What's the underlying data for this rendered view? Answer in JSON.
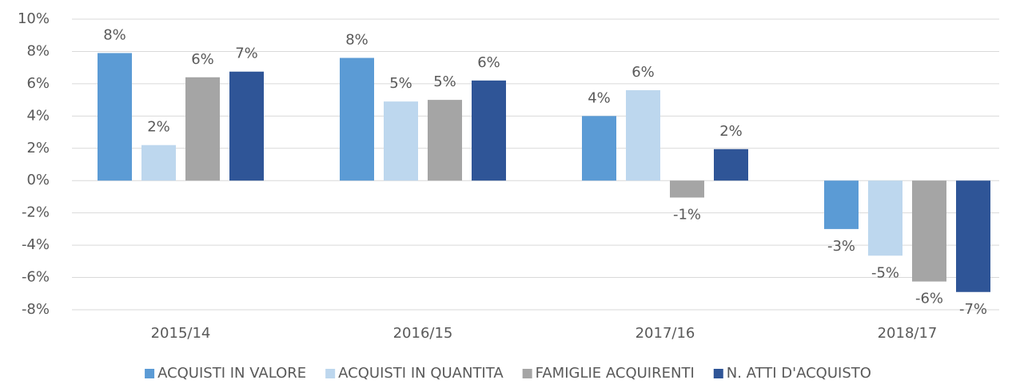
{
  "chart_data": {
    "type": "bar",
    "categories": [
      "2015/14",
      "2016/15",
      "2017/16",
      "2018/17"
    ],
    "series": [
      {
        "name": "ACQUISTI IN VALORE",
        "color": "#5b9bd5",
        "values": [
          7.9,
          7.6,
          4.0,
          -3.0
        ],
        "value_labels": [
          "8%",
          "8%",
          "4%",
          "-3%"
        ]
      },
      {
        "name": "ACQUISTI IN QUANTITA",
        "color": "#bdd7ee",
        "values": [
          2.2,
          4.9,
          5.6,
          -4.65
        ],
        "value_labels": [
          "2%",
          "5%",
          "6%",
          "-5%"
        ]
      },
      {
        "name": "FAMIGLIE ACQUIRENTI",
        "color": "#a5a5a5",
        "values": [
          6.4,
          5.0,
          -1.05,
          -6.25
        ],
        "value_labels": [
          "6%",
          "5%",
          "-1%",
          "-6%"
        ]
      },
      {
        "name": "N. ATTI D'ACQUISTO",
        "color": "#2f5597",
        "values": [
          6.75,
          6.2,
          1.95,
          -6.9
        ],
        "value_labels": [
          "7%",
          "6%",
          "2%",
          "-7%"
        ]
      }
    ],
    "ylim": [
      -8,
      10
    ],
    "yticks": [
      {
        "value": -8,
        "label": "-8%"
      },
      {
        "value": -6,
        "label": "-6%"
      },
      {
        "value": -4,
        "label": "-4%"
      },
      {
        "value": -2,
        "label": "-2%"
      },
      {
        "value": 0,
        "label": "0%"
      },
      {
        "value": 2,
        "label": "2%"
      },
      {
        "value": 4,
        "label": "4%"
      },
      {
        "value": 6,
        "label": "6%"
      },
      {
        "value": 8,
        "label": "8%"
      },
      {
        "value": 10,
        "label": "10%"
      }
    ],
    "grid": true,
    "legend": "bottom"
  }
}
